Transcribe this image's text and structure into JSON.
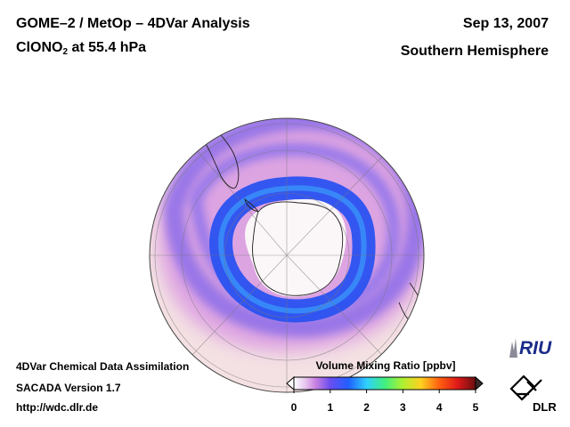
{
  "header": {
    "title": "GOME–2 / MetOp – 4DVar Analysis",
    "species_prefix": "ClONO",
    "species_subscript": "2",
    "species_suffix": " at 55.4 hPa",
    "date": "Sep 13, 2007",
    "region": "Southern Hemisphere"
  },
  "footer": {
    "line1": "4DVar Chemical Data Assimilation",
    "line2": "SACADA Version 1.7",
    "line3": "http://wdc.dlr.de"
  },
  "colorbar": {
    "title": "Volume Mixing Ratio [ppbv]",
    "ticks": [
      "0",
      "1",
      "2",
      "3",
      "4",
      "5"
    ],
    "range": [
      0,
      5
    ],
    "colors": {
      "min_arrow": "#ffffff",
      "max_arrow": "#3a2a2a"
    }
  },
  "logos": {
    "riu": "RIU",
    "dlr": "DLR"
  },
  "map": {
    "projection": "orthographic south polar",
    "colors": {
      "background_low": "#f3dede",
      "mid_violet": "#c87ad8",
      "ring_blue": "#2f5bf2",
      "deep_blue": "#2140f0",
      "pole_low": "#ffffff",
      "coast": "#222222",
      "grid": "#666666"
    }
  }
}
